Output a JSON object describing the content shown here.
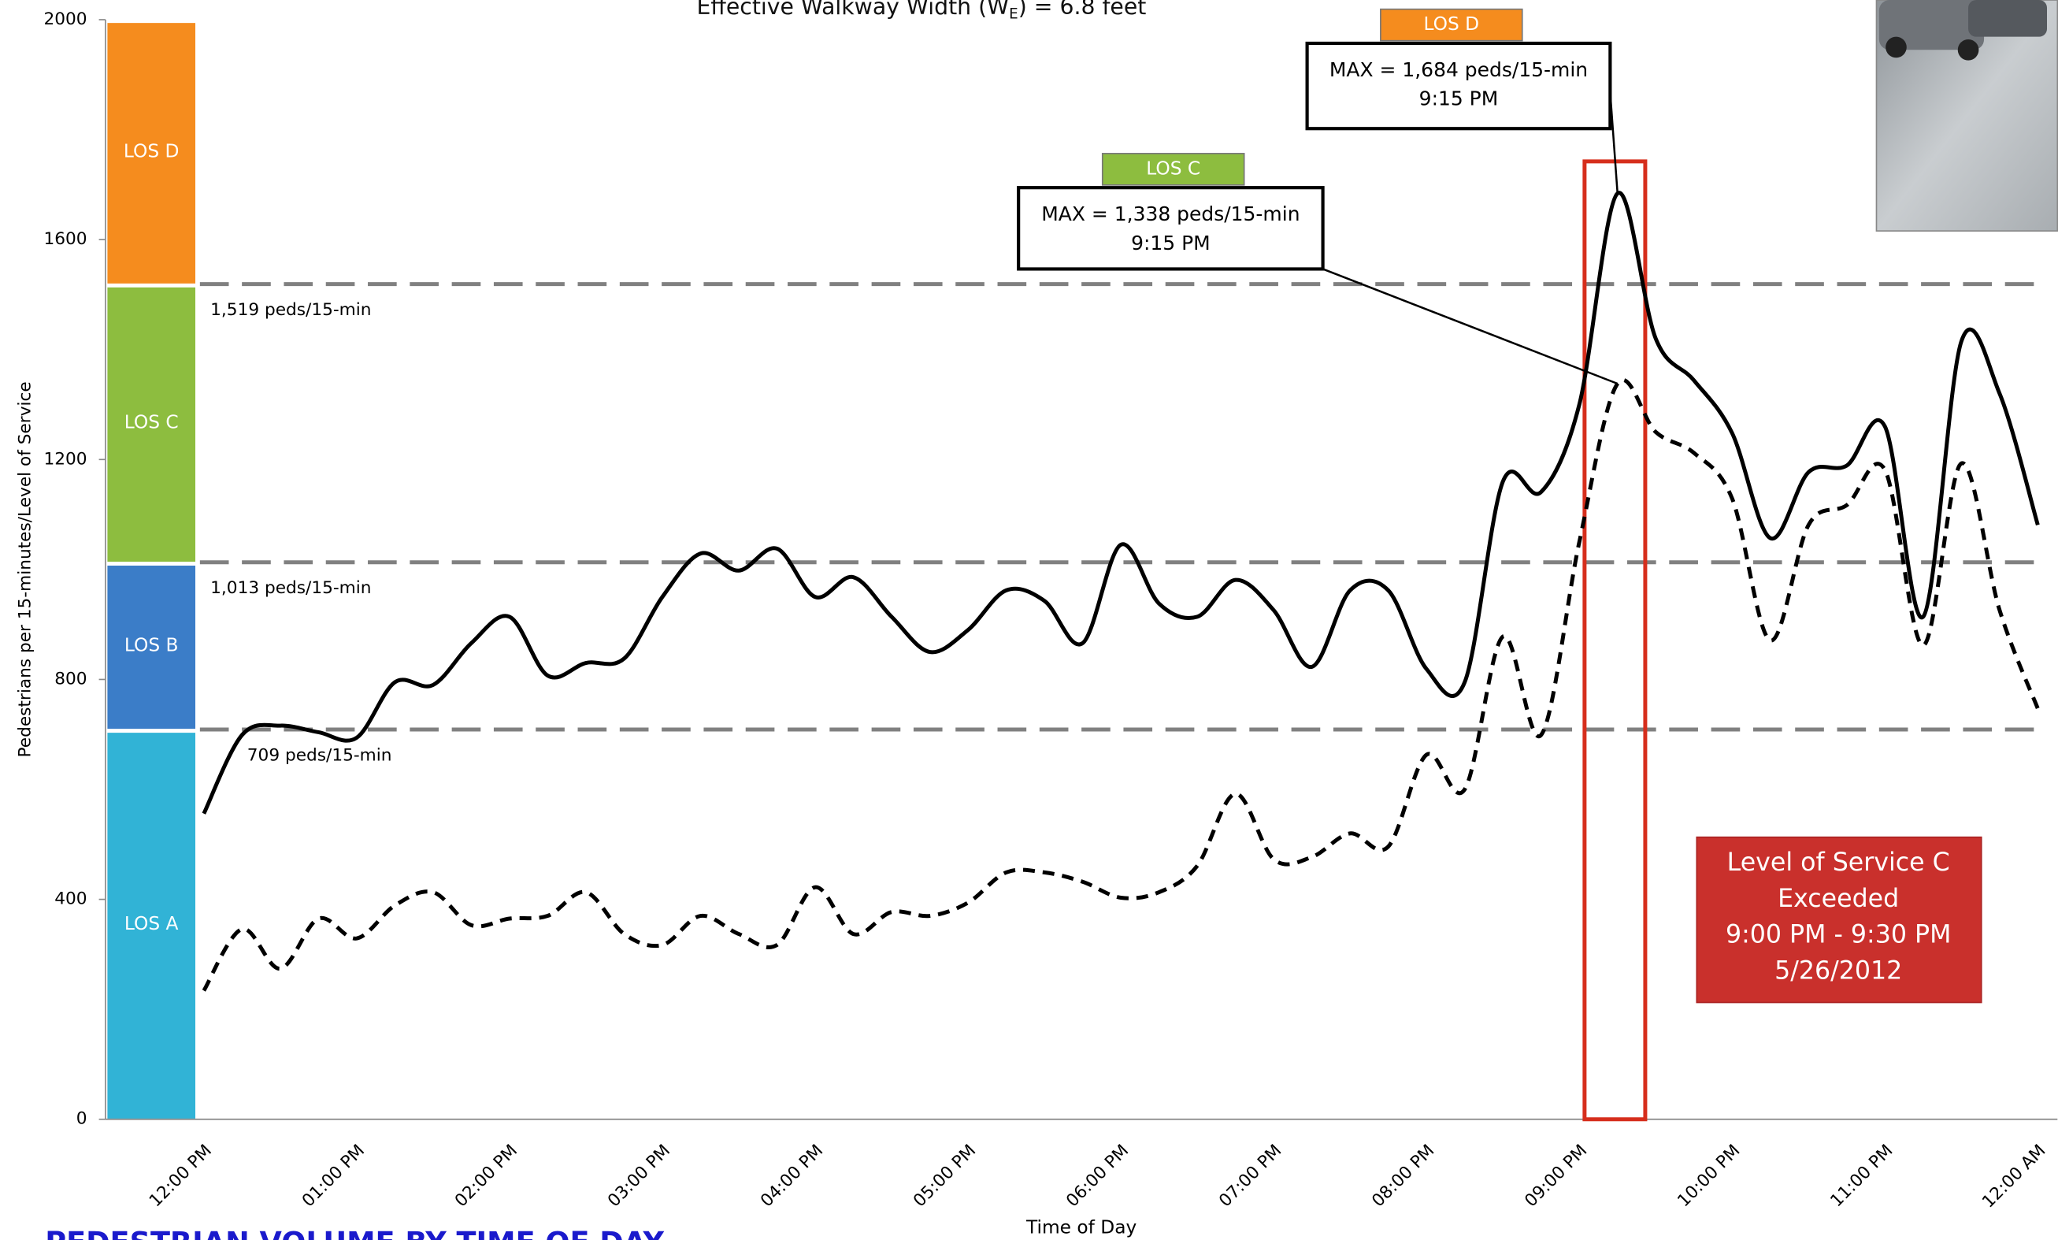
{
  "chart_data": {
    "type": "line",
    "title": [
      "Effective Walkway Width (W",
      "E",
      ") = 6.8 feet"
    ],
    "y_label": "Pedestrians per 15-minutes/Level of Service",
    "x_label": "Time of Day",
    "caption": "PEDESTRIAN VOLUME BY TIME OF DAY",
    "categories": [
      "12:00 PM",
      null,
      null,
      null,
      "01:00 PM",
      null,
      null,
      null,
      "02:00 PM",
      null,
      null,
      null,
      "03:00 PM",
      null,
      null,
      null,
      "04:00 PM",
      null,
      null,
      null,
      "05:00 PM",
      null,
      null,
      null,
      "06:00 PM",
      null,
      null,
      null,
      "07:00 PM",
      null,
      null,
      null,
      "08:00 PM",
      null,
      null,
      null,
      "09:00 PM",
      null,
      null,
      null,
      "10:00 PM",
      null,
      null,
      null,
      "11:00 PM",
      null,
      null,
      null,
      "12:00 AM"
    ],
    "series": [
      {
        "color": "#000000",
        "style": "solid",
        "values": [
          556,
          699,
          716,
          704,
          694,
          795,
          790,
          866,
          914,
          807,
          830,
          838,
          950,
          1029,
          998,
          1038,
          950,
          986,
          914,
          850,
          890,
          962,
          943,
          866,
          1045,
          938,
          914,
          981,
          926,
          823,
          962,
          962,
          819,
          795,
          1160,
          1141,
          1300,
          1684,
          1420,
          1344,
          1248,
          1057,
          1177,
          1189,
          1260,
          914,
          1415,
          1320,
          1081
        ]
      },
      {
        "color": "#000000",
        "style": "dashed",
        "values": [
          234,
          346,
          274,
          365,
          329,
          389,
          413,
          353,
          365,
          370,
          413,
          337,
          317,
          370,
          337,
          317,
          422,
          337,
          377,
          370,
          394,
          449,
          449,
          432,
          403,
          413,
          461,
          592,
          473,
          477,
          520,
          496,
          663,
          600,
          878,
          699,
          1050,
          1338,
          1250,
          1212,
          1129,
          871,
          1081,
          1117,
          1181,
          862,
          1193,
          926,
          747
        ]
      }
    ],
    "ylim": [
      0,
      2000
    ],
    "yticks": [
      0,
      400,
      800,
      1200,
      1600,
      2000
    ],
    "thresholds": [
      {
        "value": 709,
        "label": "709 peds/15-min"
      },
      {
        "value": 1013,
        "label": "1,013 peds/15-min"
      },
      {
        "value": 1519,
        "label": "1,519 peds/15-min"
      }
    ],
    "los_bands": [
      {
        "label": "LOS A",
        "color": "#31b3d6"
      },
      {
        "label": "LOS B",
        "color": "#3b7dc8"
      },
      {
        "label": "LOS C",
        "color": "#8dbd3f"
      },
      {
        "label": "LOS D",
        "color": "#f58c1e"
      }
    ],
    "annotations": [
      {
        "badge": "LOS D",
        "badge_color": "#f58c1e",
        "text": "MAX = 1,684 peds/15-min",
        "time": "9:15 PM"
      },
      {
        "badge": "LOS C",
        "badge_color": "#8dbd3f",
        "text": "MAX = 1,338 peds/15-min",
        "time": "9:15 PM"
      }
    ],
    "highlight_color": "#d62e1c",
    "note": {
      "lines": [
        "Level of Service C",
        "Exceeded",
        "9:00 PM - 9:30 PM",
        "5/26/2012"
      ],
      "color": "#c9302c"
    }
  }
}
